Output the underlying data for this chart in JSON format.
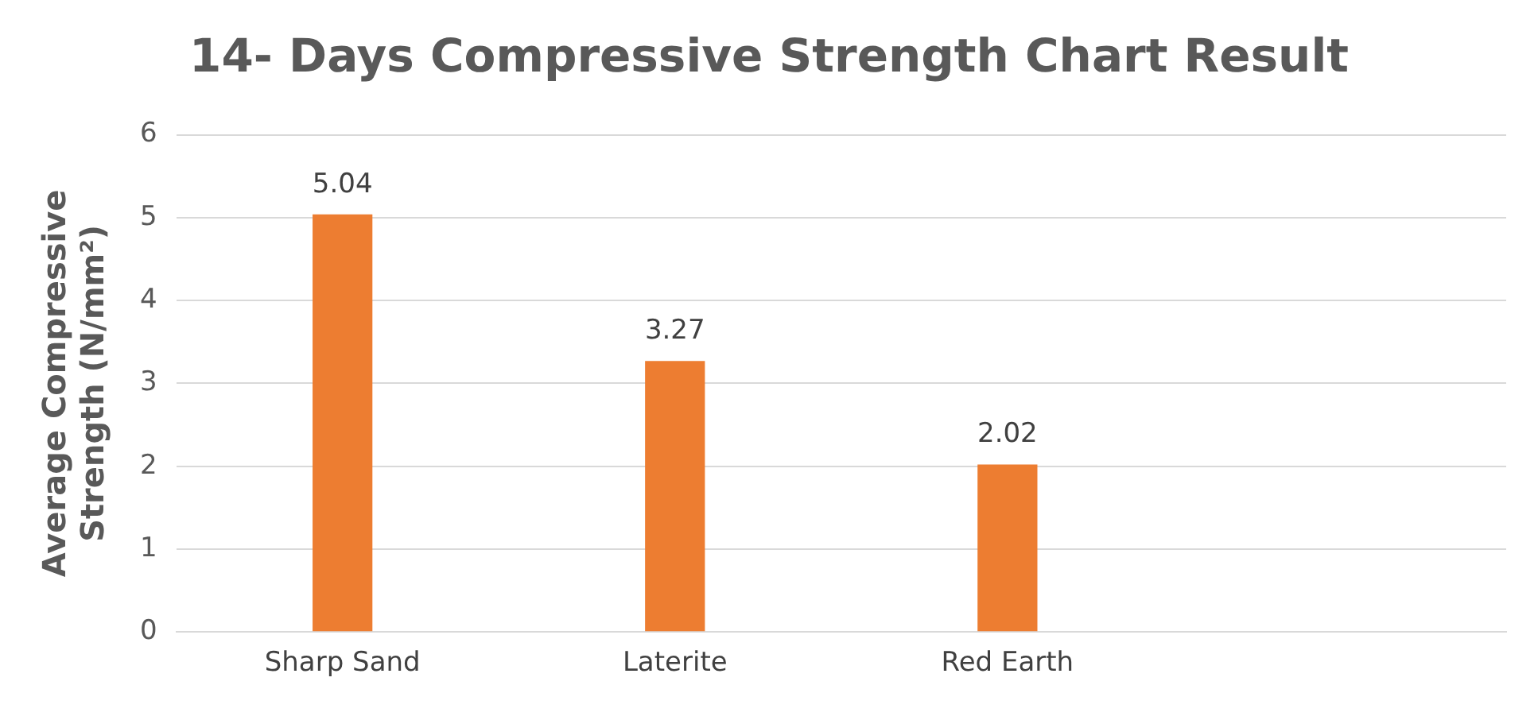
{
  "chart_data": {
    "type": "bar",
    "title": "14- Days Compressive Strength Chart Result",
    "ylabel": "Average Compressive Strength (N/mm²)",
    "categories": [
      "Sharp Sand",
      "Laterite",
      "Red Earth",
      null
    ],
    "values": [
      5.04,
      3.27,
      2.02,
      null
    ],
    "color": "#ed7d31",
    "ylim": [
      0,
      6
    ],
    "yticks": [
      0,
      1,
      2,
      3,
      4,
      5,
      6
    ],
    "grid": "y",
    "legend": false,
    "data_labels": true
  }
}
